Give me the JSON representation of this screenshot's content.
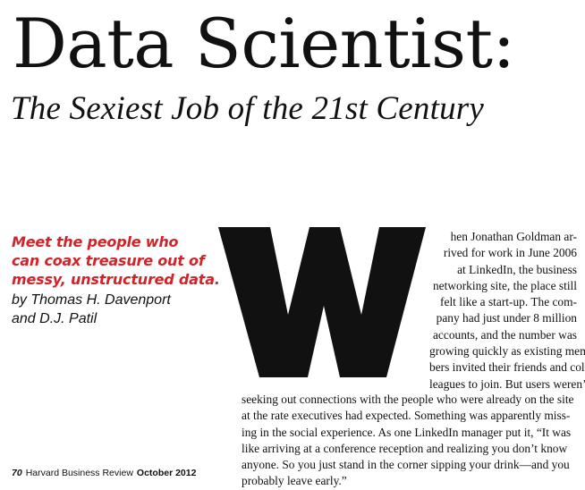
{
  "article": {
    "title": "Data Scientist:",
    "subtitle": "The Sexiest Job of the 21st Century",
    "deck_lines": [
      "Meet the people who",
      "can coax treasure out of",
      "messy, unstructured data."
    ],
    "byline_lines": [
      "by Thomas H. Davenport",
      "and D.J. Patil"
    ],
    "drop_cap": "W",
    "body_right_lines": [
      "hen Jonathan Goldman ar-",
      "rived for work in June 2006",
      "at LinkedIn, the business",
      "networking site, the place still",
      "felt like a start-up. The com-",
      "pany had just under 8 million",
      "accounts, and the number was",
      "growing quickly as existing mem-",
      "bers invited their friends and col-",
      "leagues to join. But users weren’t"
    ],
    "body_full_lines": [
      "seeking out connections with the people who were already on the site",
      "at the rate executives had expected. Something was apparently miss-",
      "ing in the social experience. As one LinkedIn manager put it, “It was",
      "like arriving at a conference reception and realizing you don’t know",
      "anyone. So you just stand in the corner sipping your drink—and you",
      "probably leave early.”"
    ]
  },
  "footer": {
    "page_number": "70",
    "publication": "Harvard Business Review",
    "issue": "October 2012"
  },
  "colors": {
    "text": "#111111",
    "accent_red": "#d2232a",
    "background": "#ffffff"
  }
}
